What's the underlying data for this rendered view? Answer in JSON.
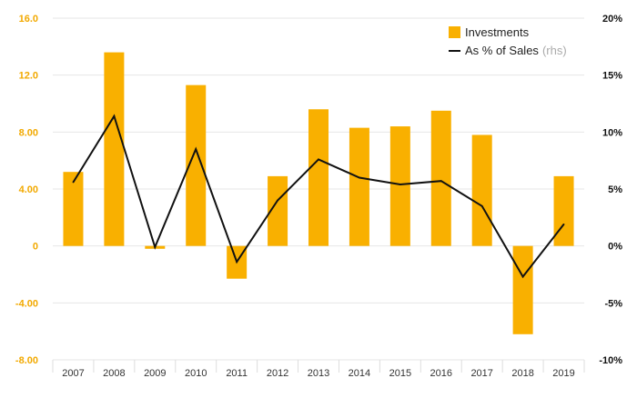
{
  "chart_data": {
    "type": "bar+line",
    "categories": [
      "2007",
      "2008",
      "2009",
      "2010",
      "2011",
      "2012",
      "2013",
      "2014",
      "2015",
      "2016",
      "2017",
      "2018",
      "2019"
    ],
    "series": [
      {
        "name": "Investments",
        "type": "bar",
        "axis": "left",
        "color": "#F9B000",
        "values": [
          5.2,
          13.6,
          -0.2,
          11.3,
          -2.3,
          4.9,
          9.6,
          8.3,
          8.4,
          9.5,
          7.8,
          -6.2,
          4.9
        ]
      },
      {
        "name": "As % of Sales",
        "name_suffix": "(rhs)",
        "type": "line",
        "axis": "right",
        "color": "#111111",
        "values": [
          5.6,
          11.4,
          -0.1,
          8.5,
          -1.4,
          4.0,
          7.6,
          6.0,
          5.4,
          5.7,
          3.5,
          -2.7,
          1.9
        ]
      }
    ],
    "left_axis": {
      "ylim": [
        -8,
        16
      ],
      "ticks": [
        16,
        12,
        8,
        4,
        0,
        -4,
        -8
      ],
      "tick_labels": [
        "16.0",
        "12.0",
        "8.00",
        "4.00",
        "0",
        "-4.00",
        "-8.00"
      ],
      "label_color": "#F2A900"
    },
    "right_axis": {
      "ylim": [
        -10,
        20
      ],
      "ticks": [
        20,
        15,
        10,
        5,
        0,
        -5,
        -10
      ],
      "tick_labels": [
        "20%",
        "15%",
        "10%",
        "5%",
        "0%",
        "-5%",
        "-10%"
      ]
    },
    "legend_position": "top-right",
    "grid": "horizontal"
  }
}
